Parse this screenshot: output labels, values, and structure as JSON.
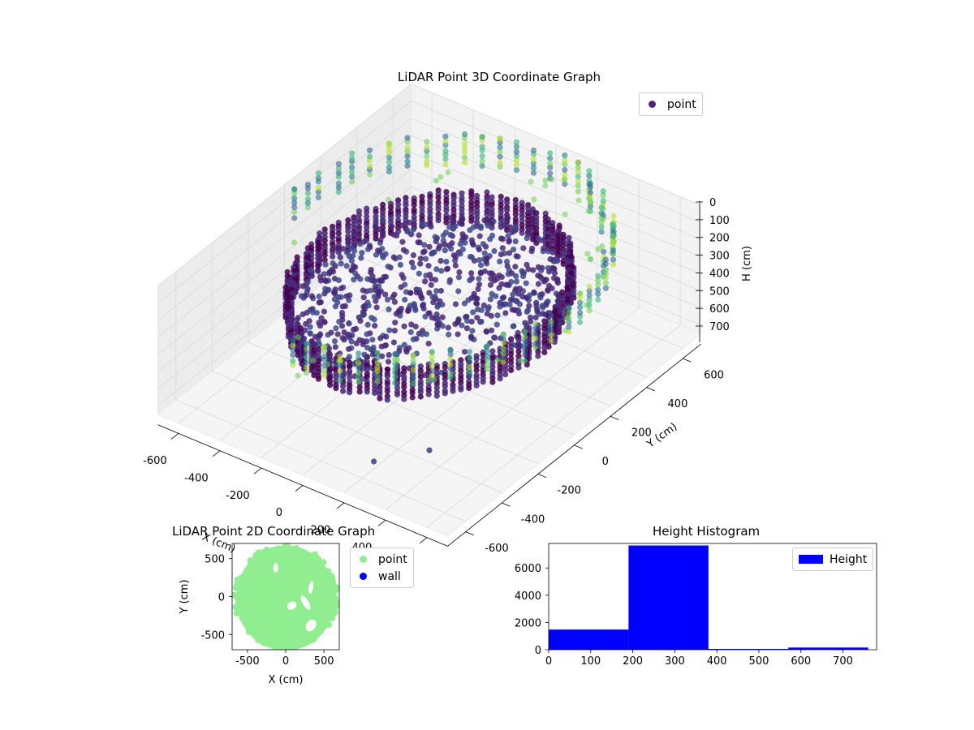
{
  "colors": {
    "viridis": [
      "#440154",
      "#482878",
      "#3e4989",
      "#31688e",
      "#26828e",
      "#1f9e89",
      "#35b779",
      "#6ece58",
      "#b5de2b",
      "#fde725"
    ],
    "points2d": "#90ee90",
    "wall": "#0000ff",
    "hist": "#0000ff",
    "pane": "#f2f2f2",
    "grid": "#d9d9d9"
  },
  "chart_data": [
    {
      "type": "scatter",
      "projection": "3d",
      "title": "LiDAR Point 3D Coordinate Graph",
      "xlabel": "X (cm)",
      "ylabel": "Y (cm)",
      "zlabel": "H (cm)",
      "xlim": [
        -700,
        700
      ],
      "ylim": [
        -700,
        700
      ],
      "zlim": [
        0,
        750
      ],
      "zaxis_inverted": true,
      "xticks": [
        -600,
        -400,
        -200,
        0,
        200,
        400,
        600
      ],
      "yticks": [
        -600,
        -400,
        -200,
        0,
        200,
        400,
        600
      ],
      "zticks": [
        0,
        100,
        200,
        300,
        400,
        500,
        600,
        700
      ],
      "legend": [
        {
          "label": "point",
          "position": "top-right"
        }
      ],
      "colormap": "viridis",
      "grid": true,
      "series": [
        {
          "name": "point",
          "description_values": {
            "ring_radius": 520,
            "ring_height_min": 200,
            "ring_height_max": 380,
            "outer_radius": 650,
            "outer_height": 680
          }
        }
      ]
    },
    {
      "type": "scatter",
      "title": "LiDAR Point 2D Coordinate Graph",
      "xlabel": "X (cm)",
      "ylabel": "Y (cm)",
      "xlim": [
        -700,
        700
      ],
      "ylim": [
        -700,
        700
      ],
      "xticks": [
        -500,
        0,
        500
      ],
      "yticks": [
        -500,
        0,
        500
      ],
      "legend_position": "right",
      "series": [
        {
          "name": "point",
          "color": "#90ee90",
          "extent_radius": 650
        },
        {
          "name": "wall",
          "color": "#0000ff",
          "values": []
        }
      ]
    },
    {
      "type": "bar",
      "title": "Height Histogram",
      "xlim": [
        0,
        780
      ],
      "ylim": [
        0,
        7800
      ],
      "xticks": [
        0,
        100,
        200,
        300,
        400,
        500,
        600,
        700
      ],
      "yticks": [
        0,
        2000,
        4000,
        6000
      ],
      "legend_position": "top-right",
      "bin_edges": [
        0,
        190,
        380,
        570,
        760
      ],
      "series": [
        {
          "name": "Height",
          "color": "#0000ff",
          "values": [
            1480,
            7650,
            60,
            160
          ]
        }
      ]
    }
  ]
}
